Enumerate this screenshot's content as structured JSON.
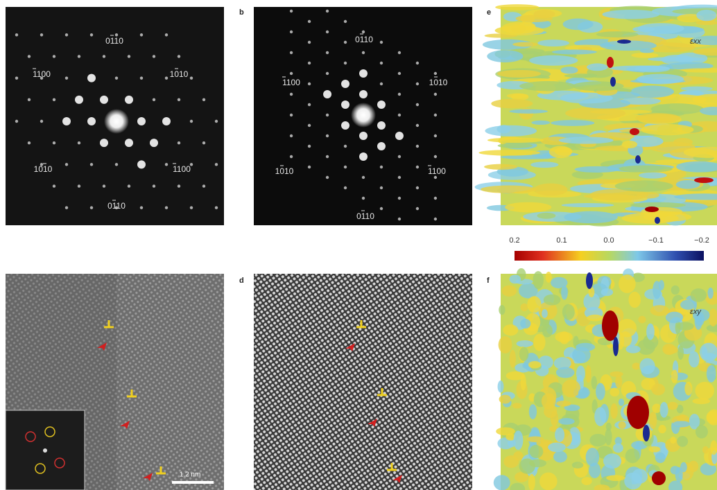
{
  "panel_labels": [
    "b",
    "e",
    "d",
    "f"
  ],
  "diffraction_a": [
    "0110",
    "1100",
    "1010",
    "1010",
    "1100",
    "0110"
  ],
  "diffraction_b": [
    "0110",
    "1100",
    "1010",
    "1010",
    "1100",
    "0110"
  ],
  "colorbar_ticks": [
    "0.2",
    "0.1",
    "0.0",
    "−0.1",
    "−0.2"
  ],
  "strain_labels": [
    "εxx",
    "εxy"
  ],
  "scale_bar": "1.2 nm"
}
